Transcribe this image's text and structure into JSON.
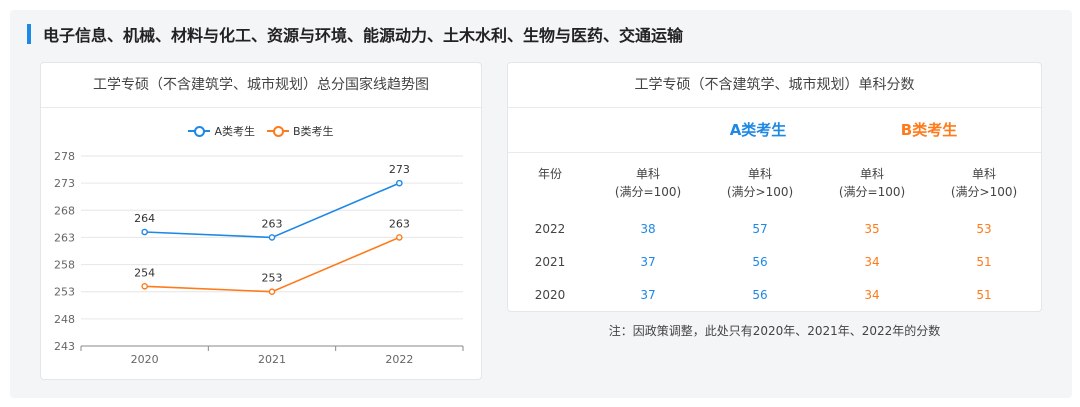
{
  "section": {
    "title": "电子信息、机械、材料与化工、资源与环境、能源动力、土木水利、生物与医药、交通运输"
  },
  "chart_card": {
    "title": "工学专硕（不含建筑学、城市规划）总分国家线趋势图"
  },
  "chart_data": {
    "type": "line",
    "categories": [
      "2020",
      "2021",
      "2022"
    ],
    "series": [
      {
        "name": "A类考生",
        "values": [
          264,
          263,
          273
        ],
        "color": "#1e88e5"
      },
      {
        "name": "B类考生",
        "values": [
          254,
          253,
          263
        ],
        "color": "#ff7a1a"
      }
    ],
    "y_ticks": [
      243,
      248,
      253,
      258,
      263,
      268,
      273,
      278
    ],
    "ylim": [
      243,
      278
    ],
    "legend_position": "top-center",
    "grid": true
  },
  "table_card": {
    "title": "工学专硕（不含建筑学、城市规划）单科分数",
    "group_a": "A类考生",
    "group_b": "B类考生",
    "headers": [
      {
        "l1": "年份",
        "l2": ""
      },
      {
        "l1": "单科",
        "l2": "(满分=100)"
      },
      {
        "l1": "单科",
        "l2": "(满分>100)"
      },
      {
        "l1": "单科",
        "l2": "(满分=100)"
      },
      {
        "l1": "单科",
        "l2": "(满分>100)"
      }
    ],
    "rows": [
      {
        "year": "2022",
        "a1": "38",
        "a2": "57",
        "b1": "35",
        "b2": "53"
      },
      {
        "year": "2021",
        "a1": "37",
        "a2": "56",
        "b1": "34",
        "b2": "51"
      },
      {
        "year": "2020",
        "a1": "37",
        "a2": "56",
        "b1": "34",
        "b2": "51"
      }
    ]
  },
  "note": "注：因政策调整，此处只有2020年、2021年、2022年的分数"
}
